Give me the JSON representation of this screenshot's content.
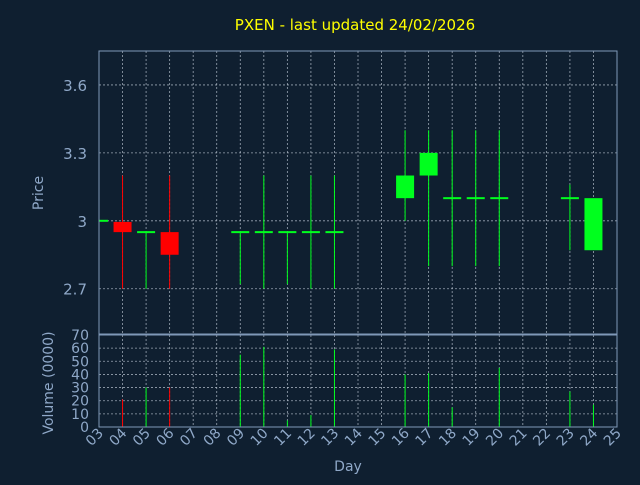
{
  "colors": {
    "background": "#0f1f30",
    "frame": "#7f98b8",
    "grid": "#c8d2de",
    "title": "#ffff00",
    "axis_text": "#8fa8c8",
    "up": "#00ff1e",
    "down": "#ff0000"
  },
  "chart_data": [
    {
      "type": "candlestick",
      "title": "PXEN - last updated 24/02/2026",
      "ylabel": "Price",
      "xlabel": "",
      "ylim": [
        2.5,
        3.75
      ],
      "y_ticks": [
        2.7,
        3,
        3.3,
        3.6
      ],
      "y_tick_labels": [
        "2.7",
        "3",
        "3.3",
        "3.6"
      ],
      "xlim": [
        3,
        25
      ],
      "grid": true,
      "candles": [
        {
          "day": 3,
          "open": 3.0,
          "high": 3.0,
          "low": 3.0,
          "close": 3.0
        },
        {
          "day": 4,
          "open": 2.995,
          "high": 3.2,
          "low": 2.7,
          "close": 2.95
        },
        {
          "day": 5,
          "open": 2.95,
          "high": 2.95,
          "low": 2.7,
          "close": 2.95
        },
        {
          "day": 6,
          "open": 2.95,
          "high": 3.2,
          "low": 2.7,
          "close": 2.85
        },
        {
          "day": 9,
          "open": 2.95,
          "high": 2.95,
          "low": 2.72,
          "close": 2.95
        },
        {
          "day": 10,
          "open": 2.95,
          "high": 3.2,
          "low": 2.7,
          "close": 2.95
        },
        {
          "day": 11,
          "open": 2.95,
          "high": 2.95,
          "low": 2.72,
          "close": 2.95
        },
        {
          "day": 12,
          "open": 2.95,
          "high": 3.2,
          "low": 2.7,
          "close": 2.95
        },
        {
          "day": 13,
          "open": 2.95,
          "high": 3.2,
          "low": 2.7,
          "close": 2.95
        },
        {
          "day": 16,
          "open": 3.1,
          "high": 3.4,
          "low": 3.0,
          "close": 3.2
        },
        {
          "day": 17,
          "open": 3.2,
          "high": 3.4,
          "low": 2.8,
          "close": 3.3
        },
        {
          "day": 18,
          "open": 3.1,
          "high": 3.4,
          "low": 2.8,
          "close": 3.1
        },
        {
          "day": 19,
          "open": 3.1,
          "high": 3.4,
          "low": 2.8,
          "close": 3.1
        },
        {
          "day": 20,
          "open": 3.1,
          "high": 3.4,
          "low": 2.8,
          "close": 3.1
        },
        {
          "day": 23,
          "open": 3.1,
          "high": 3.16,
          "low": 2.87,
          "close": 3.1
        },
        {
          "day": 24,
          "open": 2.87,
          "high": 3.1,
          "low": 2.87,
          "close": 3.1
        }
      ]
    },
    {
      "type": "bar",
      "title": "",
      "ylabel": "Volume (0000)",
      "xlabel": "Day",
      "ylim": [
        0,
        70
      ],
      "y_ticks": [
        0,
        10,
        20,
        30,
        40,
        50,
        60,
        70
      ],
      "y_tick_labels": [
        "0",
        "10",
        "20",
        "30",
        "40",
        "50",
        "60",
        "70"
      ],
      "x_ticks": [
        3,
        4,
        5,
        6,
        7,
        8,
        9,
        10,
        11,
        12,
        13,
        14,
        15,
        16,
        17,
        18,
        19,
        20,
        21,
        22,
        23,
        24,
        25
      ],
      "x_tick_labels": [
        "03",
        "04",
        "05",
        "06",
        "07",
        "08",
        "09",
        "10",
        "11",
        "12",
        "13",
        "14",
        "15",
        "16",
        "17",
        "18",
        "19",
        "20",
        "21",
        "22",
        "23",
        "24",
        "25"
      ],
      "grid": true,
      "bars": [
        {
          "day": 4,
          "value": 21,
          "direction": "down"
        },
        {
          "day": 5,
          "value": 30,
          "direction": "up"
        },
        {
          "day": 6,
          "value": 30,
          "direction": "down"
        },
        {
          "day": 9,
          "value": 55,
          "direction": "up"
        },
        {
          "day": 10,
          "value": 61,
          "direction": "up"
        },
        {
          "day": 11,
          "value": 5,
          "direction": "up"
        },
        {
          "day": 12,
          "value": 9,
          "direction": "up"
        },
        {
          "day": 13,
          "value": 59,
          "direction": "up"
        },
        {
          "day": 16,
          "value": 40,
          "direction": "up"
        },
        {
          "day": 17,
          "value": 41,
          "direction": "up"
        },
        {
          "day": 18,
          "value": 15,
          "direction": "up"
        },
        {
          "day": 20,
          "value": 45,
          "direction": "up"
        },
        {
          "day": 23,
          "value": 27,
          "direction": "up"
        },
        {
          "day": 24,
          "value": 17,
          "direction": "up"
        }
      ]
    }
  ]
}
